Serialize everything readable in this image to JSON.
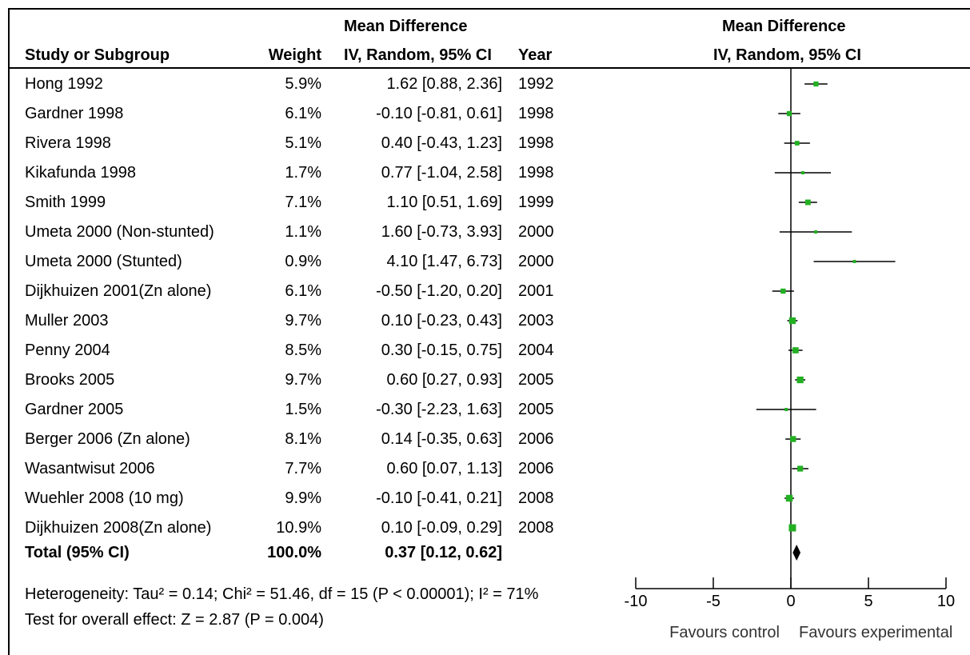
{
  "headers": {
    "study": "Study or Subgroup",
    "weight": "Weight",
    "md_top": "Mean Difference",
    "md_bottom": "IV, Random, 95% CI",
    "year": "Year",
    "plot_top": "Mean Difference",
    "plot_bottom": "IV, Random, 95% CI"
  },
  "total": {
    "label": "Total (95% CI)",
    "weight": "100.0%",
    "ci": "0.37 [0.12, 0.62]"
  },
  "heterogeneity": "Heterogeneity: Tau² = 0.14; Chi² = 51.46, df = 15 (P < 0.00001); I² = 71%",
  "overall_effect": "Test for overall effect: Z = 2.87 (P = 0.004)",
  "axis_labels": {
    "left": "Favours control",
    "right": "Favours experimental"
  },
  "colors": {
    "marker": "#22b022",
    "line": "#000000"
  },
  "chart_data": {
    "type": "forest",
    "x_range": [
      -10,
      10
    ],
    "ticks": [
      -10,
      -5,
      0,
      5,
      10
    ],
    "studies": [
      {
        "name": "Hong 1992",
        "weight": "5.9%",
        "ci_text": "1.62 [0.88, 2.36]",
        "year": "1992",
        "md": 1.62,
        "lo": 0.88,
        "hi": 2.36
      },
      {
        "name": "Gardner 1998",
        "weight": "6.1%",
        "ci_text": "-0.10 [-0.81, 0.61]",
        "year": "1998",
        "md": -0.1,
        "lo": -0.81,
        "hi": 0.61
      },
      {
        "name": "Rivera 1998",
        "weight": "5.1%",
        "ci_text": "0.40 [-0.43, 1.23]",
        "year": "1998",
        "md": 0.4,
        "lo": -0.43,
        "hi": 1.23
      },
      {
        "name": "Kikafunda 1998",
        "weight": "1.7%",
        "ci_text": "0.77 [-1.04, 2.58]",
        "year": "1998",
        "md": 0.77,
        "lo": -1.04,
        "hi": 2.58
      },
      {
        "name": "Smith 1999",
        "weight": "7.1%",
        "ci_text": "1.10 [0.51, 1.69]",
        "year": "1999",
        "md": 1.1,
        "lo": 0.51,
        "hi": 1.69
      },
      {
        "name": "Umeta 2000 (Non-stunted)",
        "weight": "1.1%",
        "ci_text": "1.60 [-0.73, 3.93]",
        "year": "2000",
        "md": 1.6,
        "lo": -0.73,
        "hi": 3.93
      },
      {
        "name": "Umeta 2000 (Stunted)",
        "weight": "0.9%",
        "ci_text": "4.10 [1.47, 6.73]",
        "year": "2000",
        "md": 4.1,
        "lo": 1.47,
        "hi": 6.73
      },
      {
        "name": "Dijkhuizen 2001(Zn alone)",
        "weight": "6.1%",
        "ci_text": "-0.50 [-1.20, 0.20]",
        "year": "2001",
        "md": -0.5,
        "lo": -1.2,
        "hi": 0.2
      },
      {
        "name": "Muller 2003",
        "weight": "9.7%",
        "ci_text": "0.10 [-0.23, 0.43]",
        "year": "2003",
        "md": 0.1,
        "lo": -0.23,
        "hi": 0.43
      },
      {
        "name": "Penny 2004",
        "weight": "8.5%",
        "ci_text": "0.30 [-0.15, 0.75]",
        "year": "2004",
        "md": 0.3,
        "lo": -0.15,
        "hi": 0.75
      },
      {
        "name": "Brooks 2005",
        "weight": "9.7%",
        "ci_text": "0.60 [0.27, 0.93]",
        "year": "2005",
        "md": 0.6,
        "lo": 0.27,
        "hi": 0.93
      },
      {
        "name": "Gardner 2005",
        "weight": "1.5%",
        "ci_text": "-0.30 [-2.23, 1.63]",
        "year": "2005",
        "md": -0.3,
        "lo": -2.23,
        "hi": 1.63
      },
      {
        "name": "Berger 2006 (Zn alone)",
        "weight": "8.1%",
        "ci_text": "0.14 [-0.35, 0.63]",
        "year": "2006",
        "md": 0.14,
        "lo": -0.35,
        "hi": 0.63
      },
      {
        "name": "Wasantwisut 2006",
        "weight": "7.7%",
        "ci_text": "0.60 [0.07, 1.13]",
        "year": "2006",
        "md": 0.6,
        "lo": 0.07,
        "hi": 1.13
      },
      {
        "name": "Wuehler 2008 (10 mg)",
        "weight": "9.9%",
        "ci_text": "-0.10 [-0.41, 0.21]",
        "year": "2008",
        "md": -0.1,
        "lo": -0.41,
        "hi": 0.21
      },
      {
        "name": "Dijkhuizen 2008(Zn alone)",
        "weight": "10.9%",
        "ci_text": "0.10 [-0.09, 0.29]",
        "year": "2008",
        "md": 0.1,
        "lo": -0.09,
        "hi": 0.29
      }
    ],
    "pooled": {
      "md": 0.37,
      "lo": 0.12,
      "hi": 0.62
    }
  }
}
